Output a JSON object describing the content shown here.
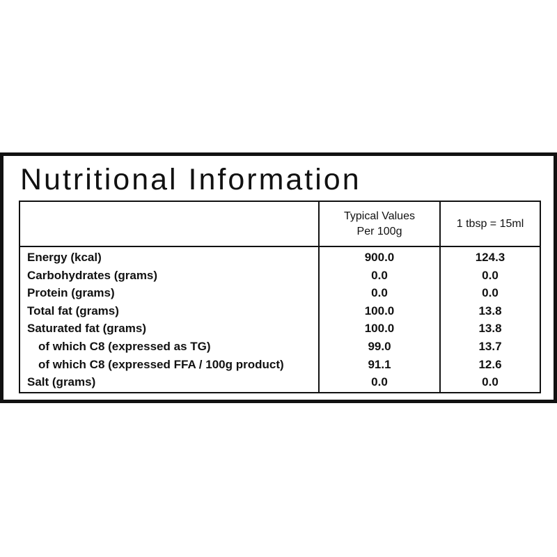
{
  "title": "Nutritional Information",
  "table": {
    "headers": [
      {
        "lines": [
          "Typical Values",
          "Per 100g"
        ]
      },
      {
        "lines": [
          "1 tbsp = 15ml"
        ]
      }
    ],
    "rows": [
      {
        "label": "Energy (kcal)",
        "values": [
          "900.0",
          "124.3"
        ]
      },
      {
        "label": "Carbohydrates (grams)",
        "values": [
          "0.0",
          "0.0"
        ]
      },
      {
        "label": "Protein (grams)",
        "values": [
          "0.0",
          "0.0"
        ]
      },
      {
        "label": "Total fat (grams)",
        "values": [
          "100.0",
          "13.8"
        ]
      },
      {
        "label": "Saturated fat (grams)",
        "values": [
          "100.0",
          "13.8"
        ]
      },
      {
        "label": "of which C8 (expressed as TG)",
        "values": [
          "99.0",
          "13.7"
        ],
        "indent": true
      },
      {
        "label": "of which C8 (expressed FFA / 100g product)",
        "values": [
          "91.1",
          "12.6"
        ],
        "indent": true
      },
      {
        "label": "Salt (grams)",
        "values": [
          "0.0",
          "0.0"
        ]
      }
    ]
  }
}
